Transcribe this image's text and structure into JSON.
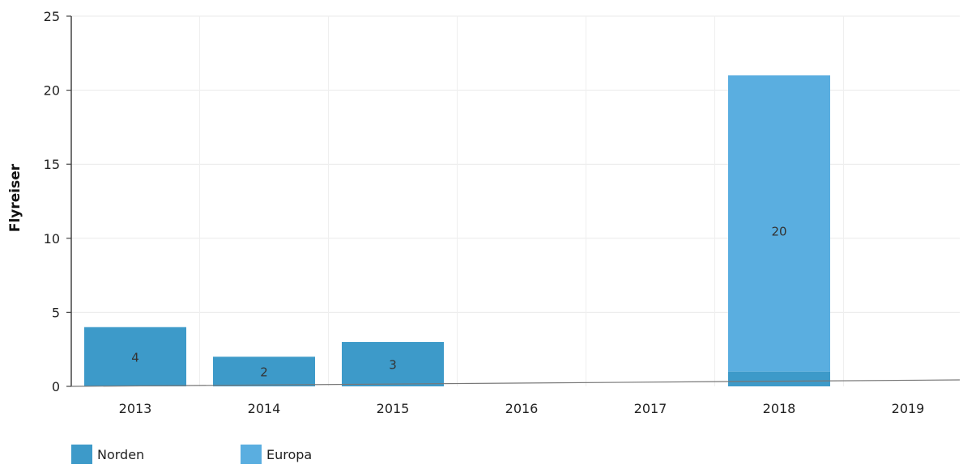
{
  "chart_data": {
    "type": "bar",
    "stacked": true,
    "categories": [
      "2013",
      "2014",
      "2015",
      "2016",
      "2017",
      "2018",
      "2019"
    ],
    "series": [
      {
        "name": "Norden",
        "color": "#3d9ac9",
        "values": [
          4,
          2,
          3,
          0,
          0,
          1,
          0
        ]
      },
      {
        "name": "Europa",
        "color": "#5aaee0",
        "values": [
          0,
          0,
          0,
          0,
          0,
          20,
          0
        ]
      }
    ],
    "data_labels": [
      "4",
      "2",
      "3",
      "",
      "",
      "20",
      ""
    ],
    "ylabel": "Flyreiser",
    "ylim": [
      0,
      25
    ],
    "yticks": [
      0,
      5,
      10,
      15,
      20,
      25
    ],
    "grid": true,
    "legend_position": "bottom-left"
  }
}
